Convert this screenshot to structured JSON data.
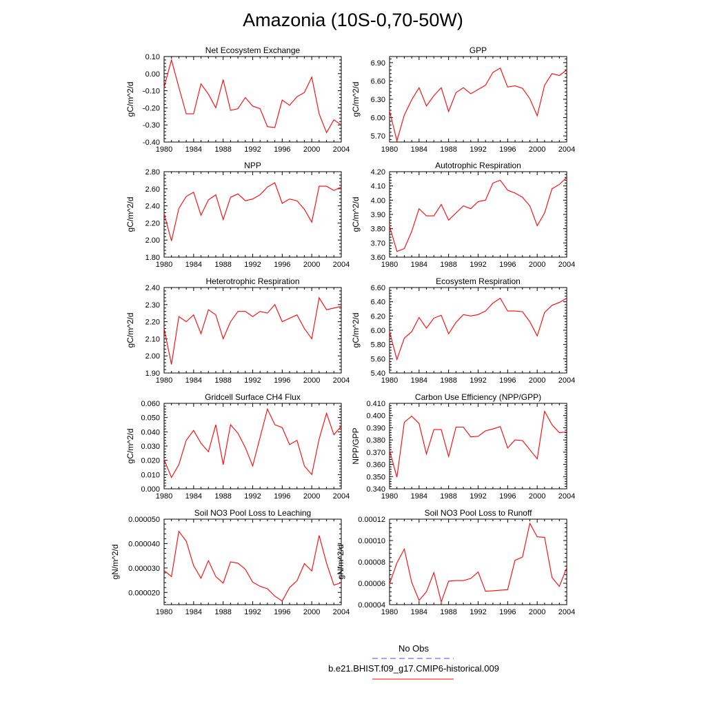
{
  "title": "Amazonia (10S-0,70-50W)",
  "legend": [
    {
      "label": "No Obs",
      "color": "#4444ff",
      "style": "dashed"
    },
    {
      "label": "b.e21.BHIST.f09_g17.CMIP6-historical.009",
      "color": "#ff0000",
      "style": "solid"
    }
  ],
  "chart_data": [
    {
      "type": "line",
      "title": "Net Ecosystem Exchange",
      "ylabel": "gC/m^2/d",
      "xlabel": "",
      "xlim": [
        1980,
        2004
      ],
      "ylim": [
        -0.4,
        0.1
      ],
      "xticks": [
        "1980",
        "1984",
        "1988",
        "1992",
        "1996",
        "2000",
        "2004"
      ],
      "yticks": [
        "0.10",
        "0.00",
        "-0.10",
        "-0.20",
        "-0.30",
        "-0.40"
      ],
      "x": [
        1980,
        1981,
        1982,
        1983,
        1984,
        1985,
        1986,
        1987,
        1988,
        1989,
        1990,
        1991,
        1992,
        1993,
        1994,
        1995,
        1996,
        1997,
        1998,
        1999,
        2000,
        2001,
        2002,
        2003,
        2004
      ],
      "series": [
        {
          "color": "#ff0000",
          "values": [
            -0.08,
            0.08,
            -0.08,
            -0.235,
            -0.235,
            -0.06,
            -0.12,
            -0.2,
            -0.035,
            -0.215,
            -0.205,
            -0.14,
            -0.19,
            -0.205,
            -0.31,
            -0.315,
            -0.155,
            -0.185,
            -0.135,
            -0.11,
            -0.02,
            -0.235,
            -0.345,
            -0.27,
            -0.3
          ]
        }
      ]
    },
    {
      "type": "line",
      "title": "GPP",
      "ylabel": "gC/m^2/d",
      "xlabel": "",
      "xlim": [
        1980,
        2004
      ],
      "ylim": [
        5.6,
        7.0
      ],
      "xticks": [
        "1980",
        "1984",
        "1988",
        "1992",
        "1996",
        "2000",
        "2004"
      ],
      "yticks": [
        "6.90",
        "6.60",
        "6.30",
        "6.00",
        "5.70"
      ],
      "x": [
        1980,
        1981,
        1982,
        1983,
        1984,
        1985,
        1986,
        1987,
        1988,
        1989,
        1990,
        1991,
        1992,
        1993,
        1994,
        1995,
        1996,
        1997,
        1998,
        1999,
        2000,
        2001,
        2002,
        2003,
        2004
      ],
      "series": [
        {
          "color": "#ff0000",
          "values": [
            6.11,
            5.62,
            6.04,
            6.29,
            6.49,
            6.19,
            6.36,
            6.49,
            6.1,
            6.41,
            6.49,
            6.39,
            6.46,
            6.53,
            6.74,
            6.81,
            6.5,
            6.52,
            6.48,
            6.31,
            6.03,
            6.53,
            6.72,
            6.69,
            6.78
          ]
        }
      ]
    },
    {
      "type": "line",
      "title": "NPP",
      "ylabel": "gC/m^2/d",
      "xlabel": "",
      "xlim": [
        1980,
        2004
      ],
      "ylim": [
        1.8,
        2.8
      ],
      "xticks": [
        "1980",
        "1984",
        "1988",
        "1992",
        "1996",
        "2000",
        "2004"
      ],
      "yticks": [
        "2.80",
        "2.60",
        "2.40",
        "2.20",
        "2.00",
        "1.80"
      ],
      "x": [
        1980,
        1981,
        1982,
        1983,
        1984,
        1985,
        1986,
        1987,
        1988,
        1989,
        1990,
        1991,
        1992,
        1993,
        1994,
        1995,
        1996,
        1997,
        1998,
        1999,
        2000,
        2001,
        2002,
        2003,
        2004
      ],
      "series": [
        {
          "color": "#ff0000",
          "values": [
            2.31,
            1.99,
            2.37,
            2.51,
            2.56,
            2.29,
            2.47,
            2.53,
            2.24,
            2.5,
            2.54,
            2.46,
            2.48,
            2.53,
            2.62,
            2.67,
            2.43,
            2.48,
            2.46,
            2.36,
            2.21,
            2.63,
            2.63,
            2.58,
            2.62
          ]
        }
      ]
    },
    {
      "type": "line",
      "title": "Autotrophic Respiration",
      "ylabel": "gC/m^2/d",
      "xlabel": "",
      "xlim": [
        1980,
        2004
      ],
      "ylim": [
        3.6,
        4.2
      ],
      "xticks": [
        "1980",
        "1984",
        "1988",
        "1992",
        "1996",
        "2000",
        "2004"
      ],
      "yticks": [
        "4.20",
        "4.10",
        "4.00",
        "3.90",
        "3.80",
        "3.70",
        "3.60"
      ],
      "x": [
        1980,
        1981,
        1982,
        1983,
        1984,
        1985,
        1986,
        1987,
        1988,
        1989,
        1990,
        1991,
        1992,
        1993,
        1994,
        1995,
        1996,
        1997,
        1998,
        1999,
        2000,
        2001,
        2002,
        2003,
        2004
      ],
      "series": [
        {
          "color": "#ff0000",
          "values": [
            3.82,
            3.64,
            3.66,
            3.78,
            3.94,
            3.89,
            3.89,
            3.97,
            3.86,
            3.91,
            3.96,
            3.94,
            3.99,
            4.0,
            4.12,
            4.14,
            4.07,
            4.05,
            4.02,
            3.96,
            3.82,
            3.91,
            4.08,
            4.11,
            4.16
          ]
        }
      ]
    },
    {
      "type": "line",
      "title": "Heterotrophic Respiration",
      "ylabel": "gC/m^2/d",
      "xlabel": "",
      "xlim": [
        1980,
        2004
      ],
      "ylim": [
        1.9,
        2.4
      ],
      "xticks": [
        "1980",
        "1984",
        "1988",
        "1992",
        "1996",
        "2000",
        "2004"
      ],
      "yticks": [
        "2.40",
        "2.30",
        "2.20",
        "2.10",
        "2.00",
        "1.90"
      ],
      "x": [
        1980,
        1981,
        1982,
        1983,
        1984,
        1985,
        1986,
        1987,
        1988,
        1989,
        1990,
        1991,
        1992,
        1993,
        1994,
        1995,
        1996,
        1997,
        1998,
        1999,
        2000,
        2001,
        2002,
        2003,
        2004
      ],
      "series": [
        {
          "color": "#ff0000",
          "values": [
            2.16,
            1.95,
            2.23,
            2.2,
            2.24,
            2.13,
            2.27,
            2.24,
            2.1,
            2.2,
            2.26,
            2.26,
            2.23,
            2.26,
            2.25,
            2.3,
            2.2,
            2.22,
            2.24,
            2.16,
            2.1,
            2.34,
            2.27,
            2.28,
            2.29
          ]
        }
      ]
    },
    {
      "type": "line",
      "title": "Ecosystem Respiration",
      "ylabel": "gC/m^2/d",
      "xlabel": "",
      "xlim": [
        1980,
        2004
      ],
      "ylim": [
        5.4,
        6.6
      ],
      "xticks": [
        "1980",
        "1984",
        "1988",
        "1992",
        "1996",
        "2000",
        "2004"
      ],
      "yticks": [
        "6.60",
        "6.40",
        "6.20",
        "6.00",
        "5.80",
        "5.60",
        "5.40"
      ],
      "x": [
        1980,
        1981,
        1982,
        1983,
        1984,
        1985,
        1986,
        1987,
        1988,
        1989,
        1990,
        1991,
        1992,
        1993,
        1994,
        1995,
        1996,
        1997,
        1998,
        1999,
        2000,
        2001,
        2002,
        2003,
        2004
      ],
      "series": [
        {
          "color": "#ff0000",
          "values": [
            5.98,
            5.59,
            5.89,
            5.98,
            6.18,
            6.03,
            6.17,
            6.21,
            5.95,
            6.11,
            6.22,
            6.2,
            6.22,
            6.27,
            6.38,
            6.45,
            6.27,
            6.27,
            6.26,
            6.12,
            5.92,
            6.25,
            6.35,
            6.39,
            6.45
          ]
        }
      ]
    },
    {
      "type": "line",
      "title": "Gridcell Surface CH4 Flux",
      "ylabel": "gC/m^2/d",
      "xlabel": "",
      "xlim": [
        1980,
        2004
      ],
      "ylim": [
        0.0,
        0.06
      ],
      "xticks": [
        "1980",
        "1984",
        "1988",
        "1992",
        "1996",
        "2000",
        "2004"
      ],
      "yticks": [
        "0.060",
        "0.050",
        "0.040",
        "0.030",
        "0.020",
        "0.010",
        "0.000"
      ],
      "x": [
        1980,
        1981,
        1982,
        1983,
        1984,
        1985,
        1986,
        1987,
        1988,
        1989,
        1990,
        1991,
        1992,
        1993,
        1994,
        1995,
        1996,
        1997,
        1998,
        1999,
        2000,
        2001,
        2002,
        2003,
        2004
      ],
      "series": [
        {
          "color": "#ff0000",
          "values": [
            0.0205,
            0.008,
            0.017,
            0.034,
            0.041,
            0.032,
            0.026,
            0.045,
            0.017,
            0.045,
            0.039,
            0.029,
            0.016,
            0.036,
            0.056,
            0.045,
            0.043,
            0.031,
            0.034,
            0.016,
            0.01,
            0.035,
            0.053,
            0.038,
            0.044
          ]
        }
      ]
    },
    {
      "type": "line",
      "title": "Carbon Use Efficiency (NPP/GPP)",
      "ylabel": "NPP/GPP",
      "xlabel": "",
      "xlim": [
        1980,
        2004
      ],
      "ylim": [
        0.34,
        0.41
      ],
      "xticks": [
        "1980",
        "1984",
        "1988",
        "1992",
        "1996",
        "2000",
        "2004"
      ],
      "yticks": [
        "0.410",
        "0.400",
        "0.390",
        "0.380",
        "0.370",
        "0.360",
        "0.350",
        "0.340"
      ],
      "x": [
        1980,
        1981,
        1982,
        1983,
        1984,
        1985,
        1986,
        1987,
        1988,
        1989,
        1990,
        1991,
        1992,
        1993,
        1994,
        1995,
        1996,
        1997,
        1998,
        1999,
        2000,
        2001,
        2002,
        2003,
        2004
      ],
      "series": [
        {
          "color": "#ff0000",
          "values": [
            0.3715,
            0.3495,
            0.3945,
            0.3995,
            0.3935,
            0.3685,
            0.3885,
            0.3885,
            0.3665,
            0.3905,
            0.3905,
            0.3825,
            0.383,
            0.3875,
            0.389,
            0.391,
            0.3735,
            0.38,
            0.3795,
            0.372,
            0.3645,
            0.4035,
            0.3925,
            0.386,
            0.3865
          ]
        }
      ]
    },
    {
      "type": "line",
      "title": "Soil NO3 Pool Loss to Leaching",
      "ylabel": "gN/m^2/d",
      "xlabel": "",
      "xlim": [
        1980,
        2004
      ],
      "ylim": [
        1.5e-05,
        5e-05
      ],
      "xticks": [
        "1980",
        "1984",
        "1988",
        "1992",
        "1996",
        "2000",
        "2004"
      ],
      "yticks": [
        "0.000050",
        "0.000040",
        "0.000030",
        "0.000020"
      ],
      "x": [
        1980,
        1981,
        1982,
        1983,
        1984,
        1985,
        1986,
        1987,
        1988,
        1989,
        1990,
        1991,
        1992,
        1993,
        1994,
        1995,
        1996,
        1997,
        1998,
        1999,
        2000,
        2001,
        2002,
        2003,
        2004
      ],
      "series": [
        {
          "color": "#ff0000",
          "values": [
            2.9e-05,
            2.65e-05,
            4.5e-05,
            4.1e-05,
            3.1e-05,
            2.58e-05,
            3.3e-05,
            2.65e-05,
            2.38e-05,
            3.25e-05,
            3.2e-05,
            2.95e-05,
            2.42e-05,
            2.25e-05,
            2.15e-05,
            1.85e-05,
            1.65e-05,
            2.2e-05,
            2.48e-05,
            3.18e-05,
            2.88e-05,
            4.33e-05,
            3.2e-05,
            2.3e-05,
            2.4e-05
          ]
        }
      ]
    },
    {
      "type": "line",
      "title": "Soil NO3 Pool Loss to Runoff",
      "ylabel": "gN/m^2/d",
      "xlabel": "",
      "xlim": [
        1980,
        2004
      ],
      "ylim": [
        4e-05,
        0.00012
      ],
      "xticks": [
        "1980",
        "1984",
        "1988",
        "1992",
        "1996",
        "2000",
        "2004"
      ],
      "yticks": [
        "0.00012",
        "0.00010",
        "0.00008",
        "0.00006",
        "0.00004"
      ],
      "x": [
        1980,
        1981,
        1982,
        1983,
        1984,
        1985,
        1986,
        1987,
        1988,
        1989,
        1990,
        1991,
        1992,
        1993,
        1994,
        1995,
        1996,
        1997,
        1998,
        1999,
        2000,
        2001,
        2002,
        2003,
        2004
      ],
      "series": [
        {
          "color": "#ff0000",
          "values": [
            5.95e-05,
            7.9e-05,
            9.2e-05,
            6.1e-05,
            4.4e-05,
            5.2e-05,
            7e-05,
            4.25e-05,
            6.2e-05,
            6.25e-05,
            6.25e-05,
            6.45e-05,
            7.05e-05,
            5.25e-05,
            5.3e-05,
            5.35e-05,
            5.4e-05,
            8.15e-05,
            8.45e-05,
            0.000116,
            0.0001035,
            0.000103,
            6.55e-05,
            5.7e-05,
            7.45e-05
          ]
        }
      ]
    }
  ]
}
